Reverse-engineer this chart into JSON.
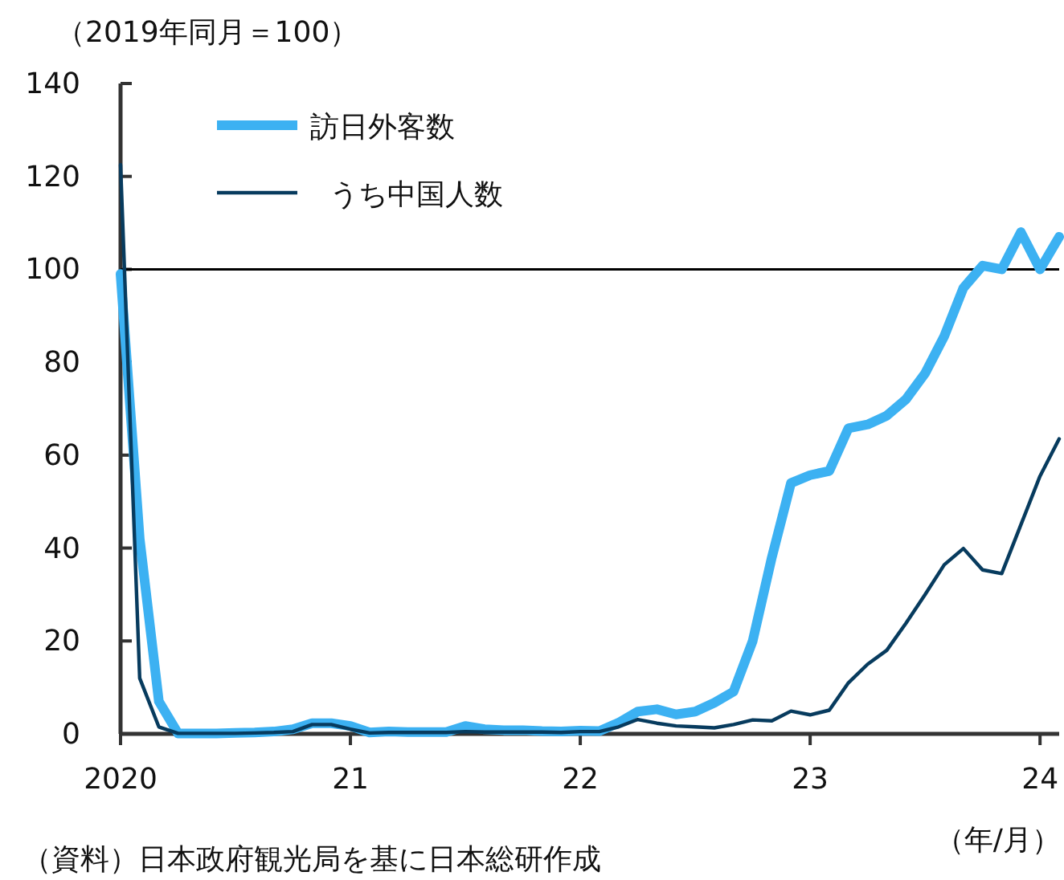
{
  "chart_data": {
    "type": "line",
    "ylabel": "（2019年同月＝100）",
    "xlabel": "（年/月）",
    "annotations": [
      "（資料）日本政府観光局を基に日本総研作成"
    ],
    "x": [
      "2020-01",
      "2020-02",
      "2020-03",
      "2020-04",
      "2020-05",
      "2020-06",
      "2020-07",
      "2020-08",
      "2020-09",
      "2020-10",
      "2020-11",
      "2020-12",
      "2021-01",
      "2021-02",
      "2021-03",
      "2021-04",
      "2021-05",
      "2021-06",
      "2021-07",
      "2021-08",
      "2021-09",
      "2021-10",
      "2021-11",
      "2021-12",
      "2022-01",
      "2022-02",
      "2022-03",
      "2022-04",
      "2022-05",
      "2022-06",
      "2022-07",
      "2022-08",
      "2022-09",
      "2022-10",
      "2022-11",
      "2022-12",
      "2023-01",
      "2023-02",
      "2023-03",
      "2023-04",
      "2023-05",
      "2023-06",
      "2023-07",
      "2023-08",
      "2023-09",
      "2023-10",
      "2023-11",
      "2023-12",
      "2024-01",
      "2024-02"
    ],
    "series": [
      {
        "name": "訪日外客数",
        "color": "#3cb1f2",
        "values": [
          99,
          42,
          7,
          0.1,
          0.1,
          0.1,
          0.2,
          0.3,
          0.5,
          1,
          2.3,
          2.3,
          1.7,
          0.3,
          0.5,
          0.4,
          0.4,
          0.4,
          1.7,
          1,
          0.8,
          0.8,
          0.6,
          0.5,
          0.7,
          0.6,
          2.4,
          4.8,
          5.3,
          4.2,
          4.8,
          6.7,
          9.1,
          20,
          38,
          54,
          55.7,
          56.6,
          65.8,
          66.6,
          68.5,
          72,
          77.6,
          85.6,
          96,
          100.8,
          100,
          108,
          100,
          107
        ]
      },
      {
        "name": "うち中国人数",
        "color": "#073b5e",
        "values": [
          122.5,
          12,
          1.5,
          0.1,
          0.1,
          0.1,
          0.1,
          0.2,
          0.3,
          0.5,
          2,
          2,
          1,
          0.2,
          0.3,
          0.3,
          0.3,
          0.3,
          0.5,
          0.4,
          0.4,
          0.4,
          0.4,
          0.3,
          0.5,
          0.5,
          1.5,
          3.1,
          2.3,
          1.7,
          1.5,
          1.3,
          2,
          3,
          2.8,
          4.9,
          4.1,
          5.1,
          11,
          15,
          18,
          23.8,
          30,
          36.4,
          39.9,
          35.3,
          34.5,
          45,
          55.5,
          63.5
        ]
      }
    ],
    "xlim": [
      "2020-01",
      "2024-02"
    ],
    "xticks": [
      {
        "value": "2020-01",
        "label": "2020"
      },
      {
        "value": "2021-01",
        "label": "21"
      },
      {
        "value": "2022-01",
        "label": "22"
      },
      {
        "value": "2023-01",
        "label": "23"
      },
      {
        "value": "2024-01",
        "label": "24"
      }
    ],
    "ylim": [
      0,
      140
    ],
    "yticks": [
      0,
      20,
      40,
      60,
      80,
      100,
      120,
      140
    ],
    "ref_lines": [
      {
        "axis": "y",
        "value": 100,
        "color": "#000000"
      }
    ],
    "legend": "top left",
    "grid": false
  }
}
